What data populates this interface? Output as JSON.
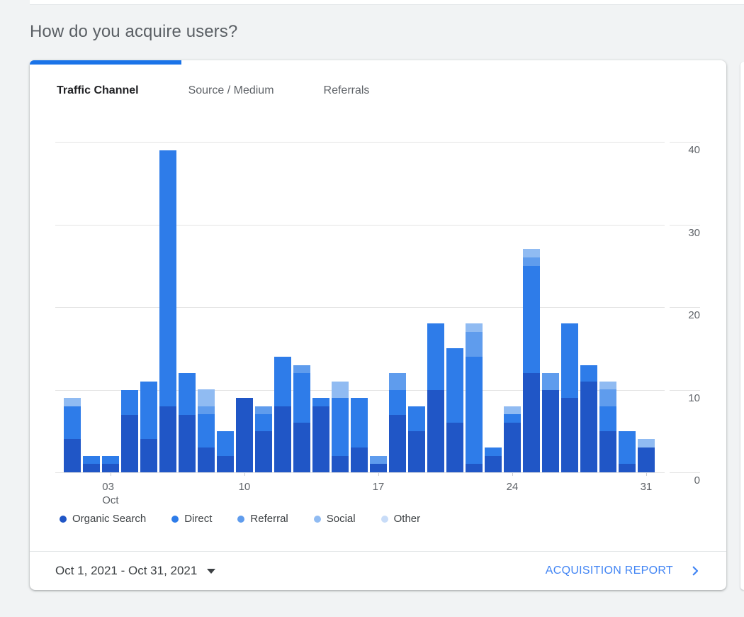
{
  "page": {
    "title": "How do you acquire users?"
  },
  "card": {
    "tabs": [
      {
        "label": "Traffic Channel",
        "active": true
      },
      {
        "label": "Source / Medium",
        "active": false
      },
      {
        "label": "Referrals",
        "active": false
      }
    ],
    "footer": {
      "date_range": "Oct 1, 2021 - Oct 31, 2021",
      "link_label": "ACQUISITION REPORT"
    },
    "accent_color": "#1a73e8",
    "link_color": "#4285f4"
  },
  "chart_data": {
    "type": "bar",
    "stacked": true,
    "title": "",
    "xlabel": "",
    "ylabel": "",
    "x_month": "Oct",
    "x_days": [
      1,
      2,
      3,
      4,
      5,
      6,
      7,
      8,
      9,
      10,
      11,
      12,
      13,
      14,
      15,
      16,
      17,
      18,
      19,
      20,
      21,
      22,
      23,
      24,
      25,
      26,
      27,
      28,
      29,
      30,
      31
    ],
    "xticks": [
      {
        "day": 3,
        "label": "03",
        "sub": "Oct"
      },
      {
        "day": 10,
        "label": "10"
      },
      {
        "day": 17,
        "label": "17"
      },
      {
        "day": 24,
        "label": "24"
      },
      {
        "day": 31,
        "label": "31"
      }
    ],
    "yticks": [
      0,
      10,
      20,
      30,
      40
    ],
    "ylim": [
      0,
      40
    ],
    "grid": true,
    "legend_position": "bottom",
    "series": [
      {
        "name": "Organic Search",
        "color": "#2056c6",
        "values": [
          4,
          1,
          1,
          7,
          4,
          8,
          7,
          3,
          2,
          9,
          5,
          8,
          6,
          8,
          2,
          3,
          1,
          7,
          5,
          10,
          6,
          1,
          2,
          6,
          12,
          10,
          9,
          11,
          5,
          1,
          3
        ]
      },
      {
        "name": "Direct",
        "color": "#2e7ce9",
        "values": [
          4,
          1,
          1,
          3,
          7,
          31,
          5,
          4,
          3,
          0,
          2,
          6,
          6,
          1,
          7,
          6,
          0,
          3,
          3,
          8,
          9,
          13,
          1,
          1,
          13,
          0,
          9,
          2,
          3,
          4,
          0
        ]
      },
      {
        "name": "Referral",
        "color": "#5f9ced",
        "values": [
          0,
          0,
          0,
          0,
          0,
          0,
          0,
          1,
          0,
          0,
          1,
          0,
          1,
          0,
          0,
          0,
          1,
          2,
          0,
          0,
          0,
          3,
          0,
          0,
          1,
          2,
          0,
          0,
          2,
          0,
          0
        ]
      },
      {
        "name": "Social",
        "color": "#90bbf2",
        "values": [
          1,
          0,
          0,
          0,
          0,
          0,
          0,
          2,
          0,
          0,
          0,
          0,
          0,
          0,
          2,
          0,
          0,
          0,
          0,
          0,
          0,
          1,
          0,
          1,
          1,
          0,
          0,
          0,
          1,
          0,
          1
        ]
      },
      {
        "name": "Other",
        "color": "#c8dcf8",
        "values": [
          0,
          0,
          0,
          0,
          0,
          0,
          0,
          0,
          0,
          0,
          0,
          0,
          0,
          0,
          0,
          0,
          0,
          0,
          0,
          0,
          0,
          0,
          0,
          0,
          0,
          0,
          0,
          0,
          0,
          0,
          0
        ]
      }
    ]
  }
}
